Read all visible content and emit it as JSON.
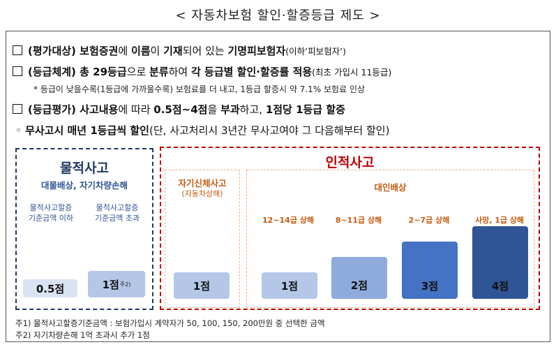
{
  "title": "< 자동차보험 할인·할증등급 제도 >",
  "lines": {
    "l1": {
      "p1": "(평가대상)",
      "p2": " 보험증권",
      "p3": "에 ",
      "p4": "이름",
      "p5": "이 ",
      "p6": "기재",
      "p7": "되어 있는 ",
      "p8": "기명피보험자",
      "p9": "(이하‘피보험자’)"
    },
    "l2": {
      "p1": "(등급체계)",
      "p2": " 총 29등급",
      "p3": "으로 ",
      "p4": "분류",
      "p5": "하여 ",
      "p6": "각 등급별 할인·할증률 적용",
      "p7": "(최초 가입시 11등급)"
    },
    "note": "* 등급이 낮을수록(1등급에 가까울수록) 보험료를 더 내고, 1등급 할증시 약 7.1% 보험료 인상",
    "l3": {
      "p1": "(등급평가)",
      "p2": " 사고내용",
      "p3": "에 따라 ",
      "p4": "0.5점~4점",
      "p5": "을 ",
      "p6": "부과",
      "p7": "하고, ",
      "p8": "1점당 1등급 할증"
    },
    "l4": {
      "bullet": "◦",
      "p1": " 무사고시 매년 1등급씩 할인",
      "p2": "(단, 사고처리시 3년간 무사고여야 그 다음해부터 할인)"
    }
  },
  "material": {
    "title": "물적사고",
    "subtitle": "대물배상, 자기차량손해",
    "col1_label_line1": "물적사고할증",
    "col1_label_line2": "기준금액 이하",
    "col2_label_line1": "물적사고할증",
    "col2_label_line2": "기준금액 초과",
    "col1_score": "0.5점",
    "col2_score": "1점",
    "col2_sup": "주2)"
  },
  "personal": {
    "title": "인적사고",
    "self_title": "자기신체사고",
    "self_sub": "(자동차상해)",
    "self_score": "1점",
    "liability_title": "대인배상",
    "grades": [
      {
        "label": "12~14급 상해",
        "score": "1점"
      },
      {
        "label": "8~11급 상해",
        "score": "2점"
      },
      {
        "label": "2~7급 상해",
        "score": "3점"
      },
      {
        "label": "사망, 1급 상해",
        "score": "4점"
      }
    ]
  },
  "footnotes": {
    "f1": "주1) 물적사고할증기준금액 : 보험가입시 계약자가 50, 100, 150, 200만원 중 선택한 금액",
    "f2": "주2) 자기차량손해 1억 초과시 추가 1점"
  },
  "colors": {
    "navy": "#1f3864",
    "red": "#c00000",
    "orange_dash": "#f4b183",
    "orange_text": "#c55a11",
    "bar_light": "#b4c7e7",
    "bar_mid": "#8faadc",
    "bar_dark": "#4472c4",
    "bar_darkest": "#2f5597",
    "bar_pale": "#dae3f3"
  }
}
